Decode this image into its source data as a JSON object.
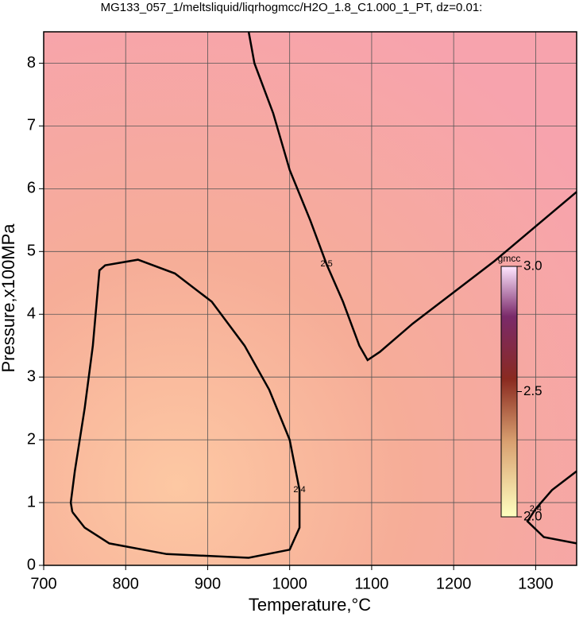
{
  "chart_data": {
    "type": "contour",
    "title": "MG133_057_1/meltsliquid/liqrhogmcc/H2O_1.8_C1.000_1_PT, dz=0.01:",
    "x_label": "Temperature,°C",
    "y_label": "Pressure,x100MPa",
    "xlim": [
      700,
      1350
    ],
    "xticks": [
      700,
      800,
      900,
      1000,
      1100,
      1200,
      1300
    ],
    "ylim": [
      0,
      8.5
    ],
    "yticks": [
      0,
      1,
      2,
      3,
      4,
      5,
      6,
      7,
      8
    ],
    "grid": true,
    "contours": [
      {
        "level": 2.5,
        "color": "#000000",
        "x": [
          950,
          957,
          980,
          1000,
          1025,
          1045,
          1065,
          1085,
          1095,
          1110,
          1150,
          1200,
          1250,
          1300,
          1350
        ],
        "y": [
          8.5,
          8.0,
          7.2,
          6.3,
          5.5,
          4.8,
          4.2,
          3.5,
          3.27,
          3.4,
          3.85,
          4.35,
          4.85,
          5.4,
          5.95
        ]
      },
      {
        "level": 2.4,
        "color": "#000000",
        "x": [
          735,
          750,
          780,
          850,
          950,
          1000,
          1012,
          1012,
          1000,
          975,
          945,
          905,
          860,
          815,
          775,
          768,
          760,
          750,
          738,
          733,
          735
        ],
        "y": [
          0.85,
          0.6,
          0.35,
          0.18,
          0.12,
          0.25,
          0.6,
          1.2,
          2.0,
          2.8,
          3.5,
          4.2,
          4.65,
          4.87,
          4.78,
          4.7,
          3.5,
          2.5,
          1.5,
          1.0,
          0.85
        ]
      },
      {
        "level": 2.4,
        "color": "#000000",
        "x": [
          1350,
          1320,
          1300,
          1290,
          1310,
          1350
        ],
        "y": [
          1.5,
          1.2,
          0.9,
          0.7,
          0.45,
          0.35
        ]
      }
    ],
    "colorbar": {
      "label": "gmcc",
      "lim": [
        2.0,
        3.0
      ],
      "ticks": [
        {
          "value": 2.0,
          "label": "2.0"
        },
        2.5,
        {
          "value": 3.0,
          "label": "3.0"
        }
      ]
    }
  }
}
